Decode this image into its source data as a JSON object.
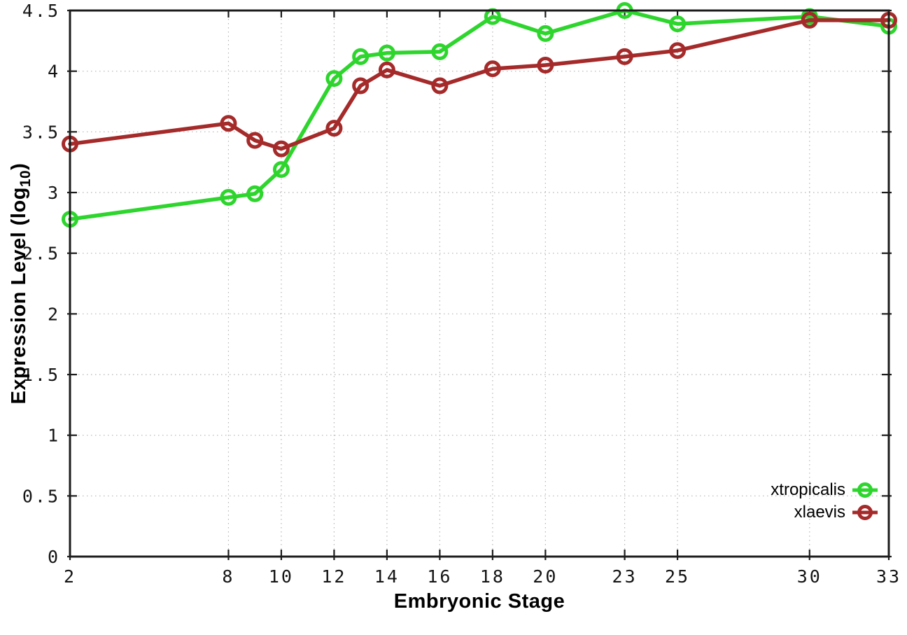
{
  "chart_data": {
    "type": "line",
    "title": "",
    "xlabel": "Embryonic Stage",
    "ylabel": "Expression Level (log10)",
    "ylabel_parts": {
      "main": "Expression Level (log",
      "sub": "10",
      "end": ")"
    },
    "x": [
      2,
      8,
      9,
      10,
      12,
      13,
      14,
      16,
      18,
      20,
      23,
      25,
      30,
      33
    ],
    "series": [
      {
        "name": "xtropicalis",
        "color": "#2dd52d",
        "marker": "open-circle",
        "values": [
          2.78,
          2.96,
          2.99,
          3.19,
          3.94,
          4.12,
          4.15,
          4.16,
          4.45,
          4.31,
          4.5,
          4.39,
          4.45,
          4.37
        ]
      },
      {
        "name": "xlaevis",
        "color": "#a52a2a",
        "marker": "open-circle",
        "values": [
          3.4,
          3.57,
          3.43,
          3.36,
          3.53,
          3.88,
          4.01,
          3.88,
          4.02,
          4.05,
          4.12,
          4.17,
          4.42,
          4.42
        ]
      }
    ],
    "xlim": [
      2,
      33
    ],
    "ylim": [
      0,
      4.5
    ],
    "x_ticks": [
      2,
      8,
      10,
      12,
      14,
      16,
      18,
      20,
      23,
      25,
      30,
      33
    ],
    "x_tick_labels": [
      "2",
      "8",
      "10",
      "12",
      "14",
      "16",
      "18",
      "20",
      "23",
      "25",
      "30",
      "33"
    ],
    "y_ticks": [
      0,
      0.5,
      1,
      1.5,
      2,
      2.5,
      3,
      3.5,
      4,
      4.5
    ],
    "y_tick_labels": [
      "0",
      "0.5",
      "1",
      "1.5",
      "2",
      "2.5",
      "3",
      "3.5",
      "4",
      "4.5"
    ],
    "grid": true,
    "grid_style": "dotted",
    "grid_color": "#b5b5b5",
    "border_color": "#1c1c1c",
    "tick_label_color": "#141414",
    "background": "#ffffff",
    "legend_position": "bottom-right-inside"
  }
}
